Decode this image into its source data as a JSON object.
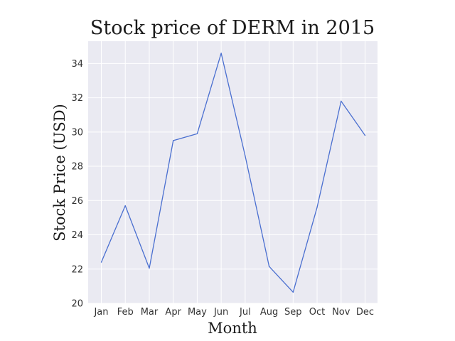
{
  "chart_data": {
    "type": "line",
    "title": "Stock price of DERM in 2015",
    "xlabel": "Month",
    "ylabel": "Stock Price (USD)",
    "categories": [
      "Jan",
      "Feb",
      "Mar",
      "Apr",
      "May",
      "Jun",
      "Jul",
      "Aug",
      "Sep",
      "Oct",
      "Nov",
      "Dec"
    ],
    "series": [
      {
        "values": [
          22.4,
          25.7,
          22.05,
          29.5,
          29.9,
          34.6,
          28.6,
          22.15,
          20.65,
          25.6,
          31.8,
          29.8
        ]
      }
    ],
    "ylim": [
      20,
      35.3
    ],
    "yticks": [
      20,
      22,
      24,
      26,
      28,
      30,
      32,
      34
    ],
    "grid": true,
    "colors": {
      "line": "#4a6fd0",
      "background": "#eaeaf2",
      "grid": "#ffffff"
    }
  }
}
